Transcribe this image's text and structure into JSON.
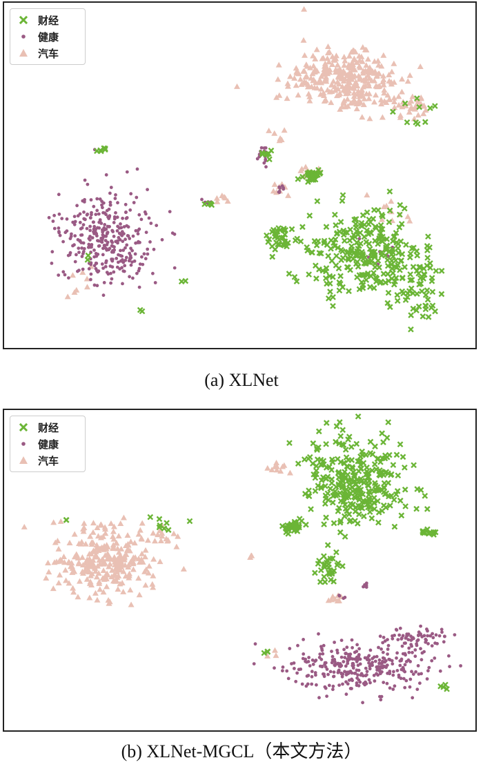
{
  "colors": {
    "finance": "#6bb536",
    "health": "#9a5a84",
    "auto": "#e9c0b4"
  },
  "chart_data": [
    {
      "type": "scatter",
      "caption": "(a)  XLNet",
      "legend": {
        "placement": "top-left",
        "entries": [
          "财经",
          "健康",
          "汽车"
        ]
      },
      "series": [
        {
          "name": "财经",
          "marker": "x",
          "clusters": [
            [
              520,
              360,
              70,
              55,
              260
            ],
            [
              445,
              250,
              16,
              8,
              28
            ],
            [
              400,
              340,
              20,
              14,
              28
            ],
            [
              600,
              160,
              25,
              20,
              10
            ],
            [
              380,
              225,
              10,
              15,
              8
            ],
            [
              140,
              212,
              8,
              3,
              6
            ],
            [
              300,
              290,
              10,
              4,
              4
            ],
            [
              200,
              445,
              3,
              2,
              2
            ],
            [
              262,
              404,
              3,
              2,
              2
            ],
            [
              123,
              370,
              3,
              3,
              2
            ],
            [
              600,
              415,
              35,
              40,
              60
            ]
          ]
        },
        {
          "name": "健康",
          "marker": "o",
          "clusters": [
            [
              148,
              340,
              55,
              55,
              340
            ],
            [
              375,
              222,
              10,
              12,
              14
            ],
            [
              402,
              268,
              10,
              6,
              8
            ],
            [
              295,
              290,
              8,
              4,
              6
            ],
            [
              540,
              365,
              20,
              20,
              10
            ]
          ]
        },
        {
          "name": "汽车",
          "marker": "^",
          "clusters": [
            [
              495,
              110,
              65,
              40,
              300
            ],
            [
              590,
              150,
              30,
              15,
              30
            ],
            [
              445,
              245,
              12,
              6,
              10
            ],
            [
              400,
              270,
              10,
              8,
              8
            ],
            [
              310,
              285,
              10,
              5,
              6
            ],
            [
              110,
              400,
              20,
              30,
              8
            ],
            [
              560,
              300,
              35,
              20,
              10
            ],
            [
              395,
              190,
              10,
              10,
              6
            ]
          ]
        }
      ]
    },
    {
      "type": "scatter",
      "caption": "(b)  XLNet-MGCL（本文方法）",
      "legend": {
        "placement": "top-left",
        "entries": [
          "财经",
          "健康",
          "汽车"
        ]
      },
      "series": [
        {
          "name": "财经",
          "marker": "x",
          "clusters": [
            [
              510,
              105,
              60,
              55,
              300
            ],
            [
              420,
              170,
              12,
              8,
              30
            ],
            [
              470,
              230,
              20,
              20,
              30
            ],
            [
              615,
              177,
              8,
              5,
              12
            ],
            [
              230,
              165,
              25,
              8,
              8
            ],
            [
              640,
              400,
              8,
              5,
              4
            ],
            [
              380,
              350,
              6,
              5,
              3
            ],
            [
              90,
              160,
              3,
              2,
              2
            ]
          ]
        },
        {
          "name": "健康",
          "marker": "o",
          "clusters": [
            [
              515,
              372,
              85,
              30,
              320
            ],
            [
              600,
              330,
              40,
              12,
              60
            ],
            [
              523,
              255,
              8,
              6,
              6
            ],
            [
              490,
              270,
              6,
              4,
              4
            ]
          ]
        },
        {
          "name": "汽车",
          "marker": "^",
          "clusters": [
            [
              145,
              220,
              60,
              40,
              260
            ],
            [
              225,
              185,
              30,
              20,
              20
            ],
            [
              400,
              85,
              15,
              8,
              10
            ],
            [
              355,
              213,
              6,
              4,
              3
            ],
            [
              480,
              275,
              12,
              8,
              8
            ],
            [
              385,
              355,
              6,
              4,
              3
            ]
          ]
        }
      ]
    }
  ]
}
